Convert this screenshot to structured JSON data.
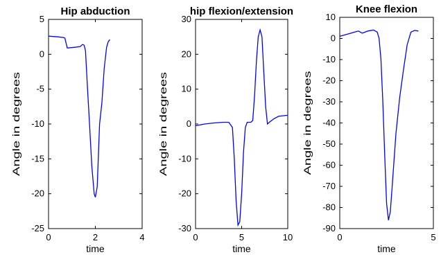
{
  "chart_data": [
    {
      "type": "line",
      "title": "Hip abduction",
      "xlabel": "time",
      "ylabel": "Angle in degrees",
      "xlim": [
        0,
        4
      ],
      "ylim": [
        -25,
        5
      ],
      "xticks": [
        0,
        2,
        4
      ],
      "yticks": [
        5,
        0,
        -5,
        -10,
        -15,
        -20,
        -25
      ],
      "color": "#0000ff",
      "series": [
        {
          "x": [
            0,
            0.4,
            0.65,
            0.7,
            0.8,
            1.1,
            1.35,
            1.45,
            1.52,
            1.58,
            1.65,
            1.75,
            1.85,
            1.95,
            2.0,
            2.08,
            2.18,
            2.28,
            2.38,
            2.48,
            2.55,
            2.62
          ],
          "y": [
            2.6,
            2.5,
            2.4,
            2.3,
            0.9,
            1.0,
            1.1,
            1.4,
            1.3,
            0.5,
            -4,
            -10,
            -16,
            -20,
            -20.5,
            -19,
            -10,
            -7,
            -2,
            1,
            1.8,
            2.1
          ]
        }
      ]
    },
    {
      "type": "line",
      "title": "hip flexion/extension",
      "xlabel": "time",
      "ylabel": "Angle in degrees",
      "xlim": [
        0,
        10
      ],
      "ylim": [
        -30,
        30
      ],
      "xticks": [
        0,
        5,
        10
      ],
      "yticks": [
        30,
        20,
        10,
        0,
        -10,
        -20,
        -30
      ],
      "color": "#0000ff",
      "series": [
        {
          "x": [
            0,
            1,
            2,
            3,
            3.6,
            4.0,
            4.2,
            4.4,
            4.6,
            4.8,
            5.0,
            5.2,
            5.4,
            5.6,
            5.8,
            6.0,
            6.2,
            6.4,
            6.6,
            6.8,
            7.0,
            7.2,
            7.4,
            7.6,
            7.8,
            8.0,
            8.5,
            9,
            10
          ],
          "y": [
            -0.5,
            0,
            0.3,
            0.5,
            0.5,
            -1,
            -10,
            -22,
            -29,
            -28,
            -20,
            -8,
            -1,
            0.5,
            0.5,
            0.5,
            1,
            8,
            18,
            25,
            27,
            25,
            15,
            5,
            0,
            0.5,
            1.5,
            2.2,
            2.5
          ]
        }
      ]
    },
    {
      "type": "line",
      "title": "Knee flexion",
      "xlabel": "time",
      "ylabel": "Angle in degrees",
      "xlim": [
        0,
        5
      ],
      "ylim": [
        -90,
        10
      ],
      "xticks": [
        0,
        5
      ],
      "yticks": [
        10,
        0,
        -10,
        -20,
        -30,
        -40,
        -50,
        -60,
        -70,
        -80,
        -90
      ],
      "color": "#0000ff",
      "series": [
        {
          "x": [
            0,
            0.4,
            0.8,
            1.0,
            1.2,
            1.5,
            1.8,
            2.0,
            2.1,
            2.2,
            2.3,
            2.4,
            2.5,
            2.6,
            2.7,
            2.8,
            3.0,
            3.2,
            3.4,
            3.6,
            3.8,
            4.0,
            4.2
          ],
          "y": [
            1,
            2,
            3,
            3.5,
            2.5,
            3.5,
            4,
            3,
            0,
            -10,
            -30,
            -55,
            -78,
            -86,
            -82,
            -70,
            -45,
            -28,
            -15,
            -3,
            3,
            3.8,
            3.5
          ]
        }
      ]
    }
  ]
}
